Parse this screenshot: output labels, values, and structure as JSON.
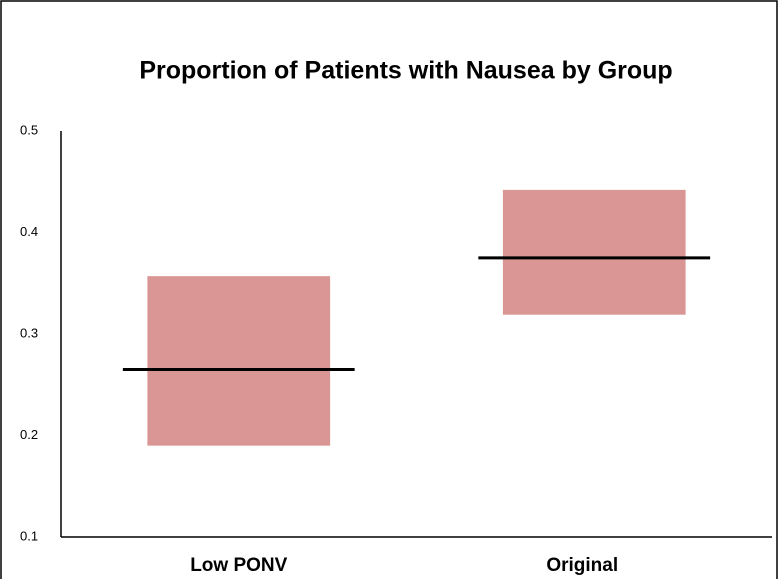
{
  "chart_data": {
    "type": "range_bar",
    "title": "Proportion of Patients with Nausea by Group",
    "categories": [
      "Low PONV",
      "Original"
    ],
    "low": [
      0.19,
      0.319
    ],
    "high": [
      0.357,
      0.442
    ],
    "mean": [
      0.265,
      0.375
    ],
    "color": "#d99694",
    "mean_color": "#000000",
    "ylim": [
      0.1,
      0.5
    ],
    "yticks": [
      0.1,
      0.2,
      0.3,
      0.4,
      0.5
    ],
    "grid": false
  }
}
